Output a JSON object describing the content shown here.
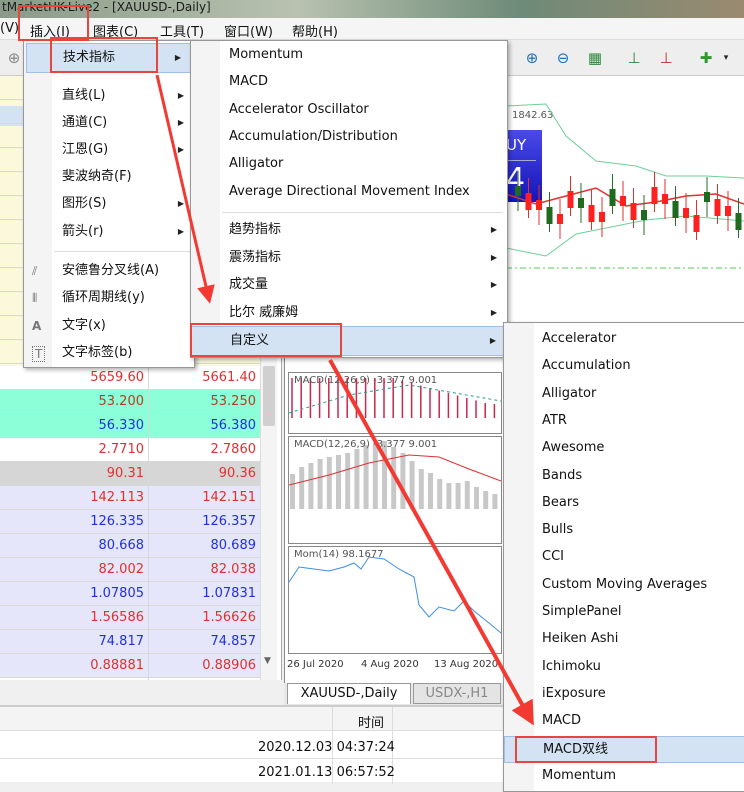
{
  "window": {
    "title": "tMarketHK-Live2 - [XAUUSD-,Daily]"
  },
  "menubar": {
    "items": [
      "(V)",
      "插入(I)",
      "图表(C)",
      "工具(T)",
      "窗口(W)",
      "帮助(H)"
    ]
  },
  "insert_menu": {
    "items": [
      {
        "label": "技术指标",
        "submenu": true
      },
      {
        "label": "直线(L)",
        "submenu": true
      },
      {
        "label": "通道(C)",
        "submenu": true
      },
      {
        "label": "江恩(G)",
        "submenu": true
      },
      {
        "label": "斐波纳奇(F)",
        "submenu": false
      },
      {
        "label": "图形(S)",
        "submenu": true
      },
      {
        "label": "箭头(r)",
        "submenu": true
      },
      {
        "label": "安德鲁分叉线(A)",
        "icon": "andrews-pitchfork-icon"
      },
      {
        "label": "循环周期线(y)",
        "icon": "cycle-lines-icon"
      },
      {
        "label": "文字(x)",
        "icon": "text-icon"
      },
      {
        "label": "文字标签(b)",
        "icon": "text-label-icon"
      }
    ]
  },
  "indicators_menu": {
    "items": [
      {
        "label": "Momentum"
      },
      {
        "label": "MACD"
      },
      {
        "label": "Accelerator Oscillator"
      },
      {
        "label": "Accumulation/Distribution"
      },
      {
        "label": "Alligator"
      },
      {
        "label": "Average Directional Movement Index"
      },
      {
        "label": "趋势指标",
        "submenu": true
      },
      {
        "label": "震荡指标",
        "submenu": true
      },
      {
        "label": "成交量",
        "submenu": true
      },
      {
        "label": "比尔 威廉姆",
        "submenu": true
      },
      {
        "label": "自定义",
        "submenu": true
      }
    ]
  },
  "custom_menu": {
    "items": [
      "Accelerator",
      "Accumulation",
      "Alligator",
      "ATR",
      "Awesome",
      "Bands",
      "Bears",
      "Bulls",
      "CCI",
      "Custom Moving Averages",
      "SimplePanel",
      "Heiken Ashi",
      "Ichimoku",
      "iExposure",
      "MACD",
      "MACD双线",
      "Momentum"
    ],
    "selected": "MACD双线"
  },
  "market_watch": {
    "rows": [
      {
        "bid": "5659.60",
        "ask": "5661.40",
        "color": "#e03030",
        "bg": "#ffffff"
      },
      {
        "bid": "53.200",
        "ask": "53.250",
        "color": "#b04020",
        "bg": "#8cffd8"
      },
      {
        "bid": "56.330",
        "ask": "56.380",
        "color": "#2030e0",
        "bg": "#8cffd8"
      },
      {
        "bid": "2.7710",
        "ask": "2.7860",
        "color": "#e03030",
        "bg": "#ffffff"
      },
      {
        "bid": "90.31",
        "ask": "90.36",
        "color": "#e03030",
        "bg": "#d6d6d6"
      },
      {
        "bid": "142.113",
        "ask": "142.151",
        "color": "#e03030",
        "bg": "#e6e6fa"
      },
      {
        "bid": "126.335",
        "ask": "126.357",
        "color": "#2030e0",
        "bg": "#e6e6fa"
      },
      {
        "bid": "80.668",
        "ask": "80.689",
        "color": "#2030e0",
        "bg": "#e6e6fa"
      },
      {
        "bid": "82.002",
        "ask": "82.038",
        "color": "#e03030",
        "bg": "#e6e6fa"
      },
      {
        "bid": "1.07805",
        "ask": "1.07831",
        "color": "#2030e0",
        "bg": "#e6e6fa"
      },
      {
        "bid": "1.56586",
        "ask": "1.56626",
        "color": "#e03030",
        "bg": "#e6e6fa"
      },
      {
        "bid": "74.817",
        "ask": "74.857",
        "color": "#2030e0",
        "bg": "#e6e6fa"
      },
      {
        "bid": "0.88881",
        "ask": "0.88906",
        "color": "#e03030",
        "bg": "#e6e6fa"
      }
    ]
  },
  "chart": {
    "macd1_label": "MACD(12,26,9) -3.377 9.001",
    "macd2_label": "MACD(12,26,9) -3.377 9.001",
    "mom_label": "Mom(14) 98.1677",
    "dates": [
      "26 Jul 2020",
      "4 Aug 2020",
      "13 Aug 2020"
    ],
    "tabs": [
      "XAUUSD-,Daily",
      "USDX-,H1"
    ],
    "price_label": "1842.63",
    "panel_buy": "UY",
    "panel_value": "4"
  },
  "bottom_panel": {
    "header_time": "时间",
    "rows": [
      "2020.12.03 04:37:24",
      "2021.01.13 06:57:52"
    ]
  },
  "colors": {
    "highlight": "#d4e3f3",
    "annotation_red": "#e8453c",
    "buy_panel": "#2a2ad8"
  }
}
